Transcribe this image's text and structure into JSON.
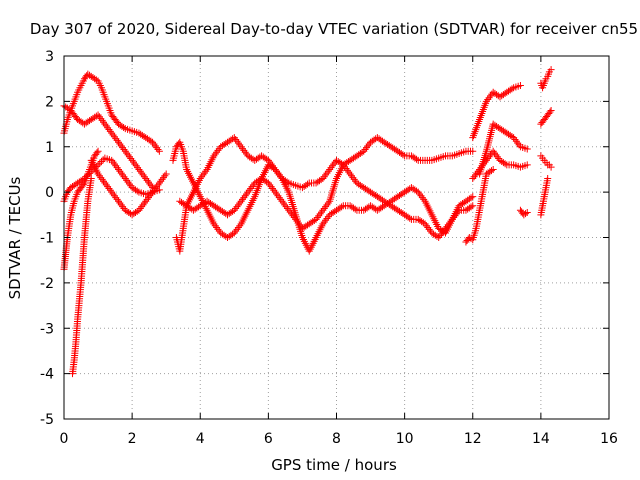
{
  "chart_data": {
    "type": "scatter",
    "title": "Day 307 of 2020, Sidereal Day-to-day VTEC variation (SDTVAR) for receiver cn55",
    "xlabel": "GPS time / hours",
    "ylabel": "SDTVAR / TECUs",
    "xlim": [
      0,
      16
    ],
    "ylim": [
      -5,
      3
    ],
    "xticks": [
      0,
      2,
      4,
      6,
      8,
      10,
      12,
      14,
      16
    ],
    "yticks": [
      3,
      2,
      1,
      0,
      -1,
      -2,
      -3,
      -4,
      -5
    ],
    "grid": true,
    "marker": "+",
    "colors": {
      "series": "#ff0000",
      "axes": "#000000",
      "grid": "#a0a0a0"
    },
    "series": [
      {
        "x": [
          0.0,
          0.1,
          0.2,
          0.3,
          0.4,
          0.5,
          0.6,
          0.7,
          0.8,
          0.9,
          1.0,
          1.2,
          1.4,
          1.6,
          1.8,
          2.0,
          2.2,
          2.4,
          2.6
        ],
        "y": [
          1.9,
          1.85,
          1.8,
          1.7,
          1.6,
          1.55,
          1.5,
          1.55,
          1.6,
          1.65,
          1.7,
          1.5,
          1.3,
          1.1,
          0.9,
          0.7,
          0.5,
          0.3,
          0.1
        ]
      },
      {
        "x": [
          0.0,
          0.1,
          0.2,
          0.3,
          0.4,
          0.5,
          0.6,
          0.7,
          0.8,
          0.9,
          1.0,
          1.1,
          1.2,
          1.3,
          1.4,
          1.5,
          1.6,
          1.8,
          2.0,
          2.2,
          2.4,
          2.6,
          2.8
        ],
        "y": [
          1.3,
          1.6,
          1.8,
          2.0,
          2.2,
          2.35,
          2.5,
          2.6,
          2.55,
          2.5,
          2.45,
          2.3,
          2.1,
          1.9,
          1.7,
          1.6,
          1.5,
          1.4,
          1.35,
          1.3,
          1.2,
          1.1,
          0.9
        ]
      },
      {
        "x": [
          0.0,
          0.1,
          0.2,
          0.3,
          0.4,
          0.6,
          0.8,
          1.0,
          1.2,
          1.4,
          1.6,
          1.8,
          2.0,
          2.2,
          2.4,
          2.6,
          2.8
        ],
        "y": [
          -0.2,
          0.0,
          0.1,
          0.15,
          0.2,
          0.3,
          0.45,
          0.6,
          0.75,
          0.7,
          0.5,
          0.3,
          0.1,
          0.0,
          -0.05,
          0.0,
          0.05
        ]
      },
      {
        "x": [
          0.0,
          0.1,
          0.2,
          0.3,
          0.4,
          0.5,
          0.6,
          0.7,
          0.8,
          0.9,
          1.0
        ],
        "y": [
          -1.7,
          -1.0,
          -0.5,
          -0.2,
          0.0,
          0.1,
          0.2,
          0.4,
          0.6,
          0.8,
          0.9
        ]
      },
      {
        "x": [
          0.25,
          0.3,
          0.35,
          0.4,
          0.45,
          0.5,
          0.55,
          0.6,
          0.65,
          0.7,
          0.8
        ],
        "y": [
          -4.0,
          -3.7,
          -3.3,
          -2.8,
          -2.4,
          -2.0,
          -1.5,
          -1.0,
          -0.6,
          -0.2,
          0.3
        ]
      },
      {
        "x": [
          0.8,
          1.0,
          1.2,
          1.4,
          1.6,
          1.8,
          2.0,
          2.2,
          2.4,
          2.6,
          2.8,
          3.0
        ],
        "y": [
          0.7,
          0.4,
          0.2,
          0.0,
          -0.2,
          -0.4,
          -0.5,
          -0.4,
          -0.2,
          0.0,
          0.2,
          0.4
        ]
      },
      {
        "x": [
          3.2,
          3.3,
          3.4,
          3.5,
          3.6,
          3.8,
          4.0,
          4.2,
          4.4,
          4.6,
          4.8,
          5.0,
          5.2,
          5.4,
          5.6,
          5.8,
          6.0,
          6.2,
          6.4,
          6.6,
          6.8,
          7.0,
          7.2,
          7.4,
          7.6,
          7.8,
          8.0,
          8.2,
          8.4,
          8.6,
          8.8,
          9.0,
          9.2,
          9.4,
          9.6,
          9.8,
          10.0,
          10.2,
          10.4,
          10.6,
          10.8,
          11.0,
          11.2,
          11.4,
          11.6,
          11.8,
          12.0
        ],
        "y": [
          0.7,
          1.0,
          1.1,
          0.9,
          0.5,
          0.2,
          -0.1,
          -0.4,
          -0.7,
          -0.9,
          -1.0,
          -0.9,
          -0.7,
          -0.4,
          -0.1,
          0.3,
          0.6,
          0.5,
          0.3,
          0.2,
          0.15,
          0.1,
          0.2,
          0.2,
          0.3,
          0.5,
          0.7,
          0.6,
          0.4,
          0.2,
          0.1,
          0.0,
          -0.1,
          -0.2,
          -0.3,
          -0.4,
          -0.5,
          -0.6,
          -0.6,
          -0.7,
          -0.9,
          -1.0,
          -0.8,
          -0.6,
          -0.4,
          -0.4,
          -0.3
        ]
      },
      {
        "x": [
          3.3,
          3.4,
          3.5,
          3.6,
          3.8,
          4.0,
          4.2,
          4.4,
          4.6,
          4.8,
          5.0,
          5.2,
          5.4,
          5.6,
          5.8,
          6.0,
          6.2,
          6.4,
          6.6,
          6.8,
          7.0,
          7.2,
          7.4,
          7.6,
          7.8,
          8.0,
          8.2,
          8.4,
          8.6,
          8.8,
          9.0,
          9.2,
          9.4,
          9.6,
          9.8,
          10.0,
          10.2,
          10.4,
          10.6,
          10.8,
          11.0,
          11.2,
          11.4,
          11.6,
          11.8,
          12.0
        ],
        "y": [
          -1.0,
          -1.3,
          -0.8,
          -0.3,
          0.0,
          0.3,
          0.5,
          0.8,
          1.0,
          1.1,
          1.2,
          1.0,
          0.8,
          0.7,
          0.8,
          0.7,
          0.5,
          0.3,
          0.0,
          -0.5,
          -1.0,
          -1.3,
          -1.0,
          -0.7,
          -0.5,
          -0.4,
          -0.3,
          -0.3,
          -0.4,
          -0.4,
          -0.3,
          -0.4,
          -0.3,
          -0.2,
          -0.1,
          0.0,
          0.1,
          0.0,
          -0.2,
          -0.5,
          -0.8,
          -0.9,
          -0.6,
          -0.3,
          -0.2,
          -0.1
        ]
      },
      {
        "x": [
          3.4,
          3.6,
          3.8,
          4.0,
          4.2,
          4.4,
          4.6,
          4.8,
          5.0,
          5.2,
          5.4,
          5.6,
          5.8,
          6.0,
          6.2,
          6.4,
          6.6,
          6.8,
          7.0,
          7.2,
          7.4,
          7.6,
          7.8,
          8.0,
          8.2,
          8.4,
          8.6,
          8.8,
          9.0,
          9.2,
          9.4,
          9.6,
          9.8,
          10.0,
          10.2,
          10.4,
          10.6,
          10.8,
          11.0,
          11.2,
          11.4,
          11.6,
          11.8,
          12.0
        ],
        "y": [
          -0.2,
          -0.3,
          -0.4,
          -0.3,
          -0.2,
          -0.3,
          -0.4,
          -0.5,
          -0.4,
          -0.2,
          0.0,
          0.2,
          0.3,
          0.2,
          0.0,
          -0.2,
          -0.4,
          -0.6,
          -0.8,
          -0.7,
          -0.6,
          -0.4,
          -0.2,
          0.3,
          0.6,
          0.7,
          0.8,
          0.9,
          1.1,
          1.2,
          1.1,
          1.0,
          0.9,
          0.8,
          0.8,
          0.7,
          0.7,
          0.7,
          0.75,
          0.8,
          0.8,
          0.85,
          0.9,
          0.9
        ]
      },
      {
        "x": [
          12.0,
          12.2,
          12.4,
          12.6,
          12.8,
          13.0,
          13.2,
          13.4
        ],
        "y": [
          1.2,
          1.6,
          2.0,
          2.2,
          2.1,
          2.2,
          2.3,
          2.35
        ]
      },
      {
        "x": [
          12.2,
          12.4,
          12.6,
          12.8,
          13.0,
          13.2,
          13.4,
          13.6
        ],
        "y": [
          0.4,
          0.9,
          1.5,
          1.4,
          1.3,
          1.2,
          1.0,
          0.95
        ]
      },
      {
        "x": [
          12.0,
          12.2,
          12.4,
          12.6,
          12.8,
          13.0,
          13.2,
          13.4,
          13.6
        ],
        "y": [
          0.3,
          0.5,
          0.7,
          0.9,
          0.7,
          0.6,
          0.6,
          0.55,
          0.6
        ]
      },
      {
        "x": [
          11.8,
          11.9,
          12.0,
          12.1,
          12.2,
          12.3,
          12.4,
          12.6
        ],
        "y": [
          -1.1,
          -1.0,
          -1.05,
          -0.8,
          -0.4,
          0.0,
          0.4,
          0.5
        ]
      },
      {
        "x": [
          13.4,
          13.5,
          13.6
        ],
        "y": [
          -0.4,
          -0.5,
          -0.45
        ]
      },
      {
        "x": [
          14.0,
          14.05,
          14.1,
          14.15,
          14.2,
          14.25,
          14.3
        ],
        "y": [
          2.4,
          2.3,
          2.4,
          2.5,
          2.55,
          2.65,
          2.7
        ]
      },
      {
        "x": [
          14.0,
          14.1,
          14.2,
          14.3
        ],
        "y": [
          1.5,
          1.6,
          1.7,
          1.8
        ]
      },
      {
        "x": [
          14.0,
          14.05,
          14.1,
          14.15,
          14.2,
          14.25,
          14.3
        ],
        "y": [
          0.8,
          0.75,
          0.7,
          0.65,
          0.6,
          0.6,
          0.55
        ]
      },
      {
        "x": [
          14.0,
          14.05,
          14.1,
          14.15,
          14.2
        ],
        "y": [
          -0.5,
          -0.3,
          -0.1,
          0.1,
          0.3
        ]
      }
    ]
  }
}
